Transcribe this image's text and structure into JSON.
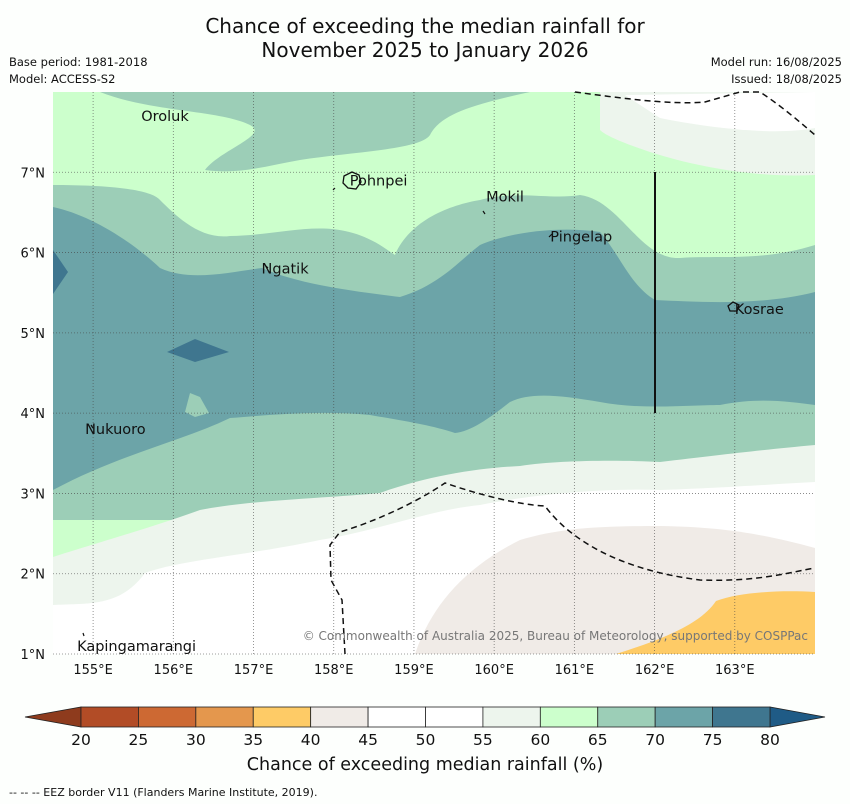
{
  "title_line1": "Chance of exceeding the median rainfall for",
  "title_line2": "November 2025 to January 2026",
  "meta_left": [
    "Base period: 1981-2018",
    "Model: ACCESS-S2"
  ],
  "meta_right": [
    "Model run: 16/08/2025",
    "Issued: 18/08/2025"
  ],
  "map": {
    "lon_range": [
      154.5,
      164
    ],
    "lat_range": [
      1,
      8
    ],
    "lon_ticks": [
      "155°E",
      "156°E",
      "157°E",
      "158°E",
      "159°E",
      "160°E",
      "161°E",
      "162°E",
      "163°E"
    ],
    "lat_ticks": [
      "1°N",
      "2°N",
      "3°N",
      "4°N",
      "5°N",
      "6°N",
      "7°N"
    ],
    "places": [
      {
        "name": "Oroluk",
        "lon": 155.6,
        "lat": 7.7
      },
      {
        "name": "Pohnpei",
        "lon": 158.2,
        "lat": 6.9
      },
      {
        "name": "Mokil",
        "lon": 159.9,
        "lat": 6.7
      },
      {
        "name": "Pingelap",
        "lon": 160.7,
        "lat": 6.2
      },
      {
        "name": "Ngatik",
        "lon": 157.1,
        "lat": 5.8
      },
      {
        "name": "Kosrae",
        "lon": 163.0,
        "lat": 5.3
      },
      {
        "name": "Nukuoro",
        "lon": 154.9,
        "lat": 3.8
      },
      {
        "name": "Kapingamarangi",
        "lon": 154.8,
        "lat": 1.1
      }
    ],
    "credit": "© Commonwealth of Australia 2025, Bureau of Meteorology, supported by COSPPac",
    "grid": true,
    "dominant_band_pct": "70-75"
  },
  "colorbar": {
    "ticks": [
      "20",
      "25",
      "30",
      "35",
      "40",
      "45",
      "50",
      "55",
      "60",
      "65",
      "70",
      "75",
      "80"
    ],
    "colors": [
      "#b24c26",
      "#cd6933",
      "#e4974d",
      "#fecb66",
      "#f0ebe7",
      "#ffffff",
      "#ffffff",
      "#edf5ed",
      "#ccffcc",
      "#9cceb7",
      "#6ca4a8",
      "#3f768f"
    ],
    "under_color": "#8e3b1d",
    "over_color": "#1f5b86",
    "label": "Chance of exceeding median rainfall (%)"
  },
  "eez_note": "--  --  -- EEZ border V11 (Flanders Marine Institute, 2019)."
}
